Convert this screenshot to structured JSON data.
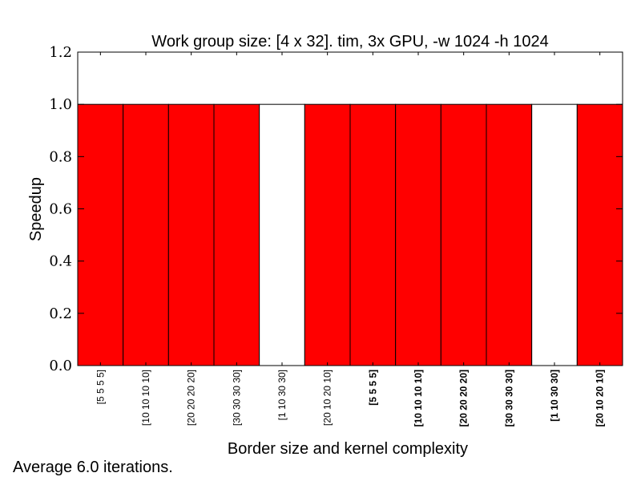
{
  "chart_data": {
    "type": "bar",
    "title": "Work group size: [4 x 32]. tim, 3x GPU, -w 1024 -h 1024",
    "xlabel": "Border size and kernel complexity",
    "ylabel": "Speedup",
    "ylim": [
      0.0,
      1.2
    ],
    "yticks": [
      "0.0",
      "0.2",
      "0.4",
      "0.6",
      "0.8",
      "1.0",
      "1.2"
    ],
    "grid": false,
    "categories": [
      "[5 5 5 5]",
      "[10 10 10 10]",
      "[20 20 20 20]",
      "[30 30 30 30]",
      "[1 10 30 30]",
      "[20 10 20 10]",
      "[5 5 5 5]",
      "[10 10 10 10]",
      "[20 20 20 20]",
      "[30 30 30 30]",
      "[1 10 30 30]",
      "[20 10 20 10]"
    ],
    "bold": [
      false,
      false,
      false,
      false,
      false,
      false,
      true,
      true,
      true,
      true,
      true,
      true
    ],
    "values": [
      1.0,
      1.0,
      1.0,
      1.0,
      1.0,
      1.0,
      1.0,
      1.0,
      1.0,
      1.0,
      1.0,
      1.0
    ],
    "colors": [
      "#ff0000",
      "#ff0000",
      "#ff0000",
      "#ff0000",
      "#ffffff",
      "#ff0000",
      "#ff0000",
      "#ff0000",
      "#ff0000",
      "#ff0000",
      "#ffffff",
      "#ff0000"
    ]
  },
  "footnote": "Average 6.0 iterations."
}
